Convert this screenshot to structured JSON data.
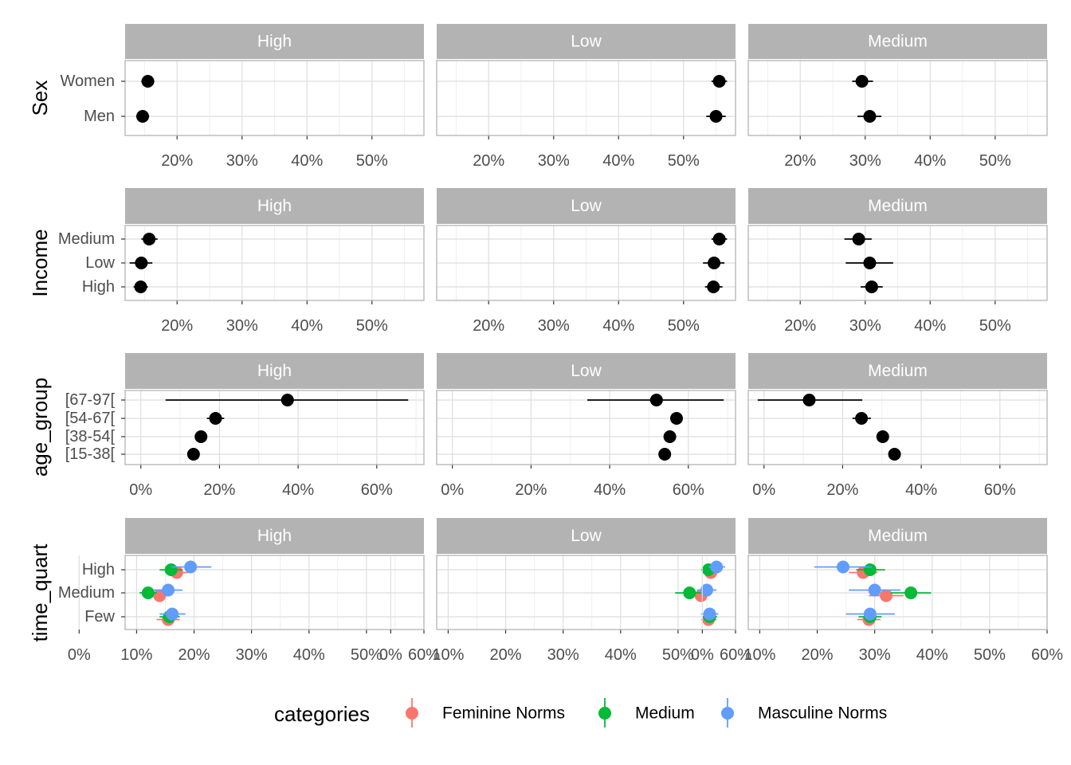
{
  "chart_data": [
    {
      "type": "scatter",
      "variable": "Sex",
      "panels": [
        "High",
        "Low",
        "Medium"
      ],
      "categories": [
        "Men",
        "Women"
      ],
      "xticks": [
        0.2,
        0.3,
        0.4,
        0.5
      ],
      "xtick_labels": [
        "20%",
        "30%",
        "40%",
        "50%"
      ],
      "series": [
        {
          "name": "",
          "color": "#000000",
          "points": [
            {
              "panel": "High",
              "category": "Women",
              "x": 0.155,
              "low": 0.145,
              "high": 0.165
            },
            {
              "panel": "High",
              "category": "Men",
              "x": 0.147,
              "low": 0.137,
              "high": 0.157
            },
            {
              "panel": "Low",
              "category": "Women",
              "x": 0.555,
              "low": 0.543,
              "high": 0.567
            },
            {
              "panel": "Low",
              "category": "Men",
              "x": 0.55,
              "low": 0.535,
              "high": 0.565
            },
            {
              "panel": "Medium",
              "category": "Women",
              "x": 0.295,
              "low": 0.28,
              "high": 0.312
            },
            {
              "panel": "Medium",
              "category": "Men",
              "x": 0.307,
              "low": 0.288,
              "high": 0.325
            }
          ]
        }
      ]
    },
    {
      "type": "scatter",
      "variable": "Income",
      "panels": [
        "High",
        "Low",
        "Medium"
      ],
      "categories": [
        "High",
        "Low",
        "Medium"
      ],
      "xticks": [
        0.2,
        0.3,
        0.4,
        0.5
      ],
      "xtick_labels": [
        "20%",
        "30%",
        "40%",
        "50%"
      ],
      "series": [
        {
          "name": "",
          "color": "#000000",
          "points": [
            {
              "panel": "High",
              "category": "Medium",
              "x": 0.157,
              "low": 0.145,
              "high": 0.17
            },
            {
              "panel": "High",
              "category": "Low",
              "x": 0.145,
              "low": 0.127,
              "high": 0.162
            },
            {
              "panel": "High",
              "category": "High",
              "x": 0.144,
              "low": 0.133,
              "high": 0.155
            },
            {
              "panel": "Low",
              "category": "Medium",
              "x": 0.555,
              "low": 0.543,
              "high": 0.567
            },
            {
              "panel": "Low",
              "category": "Low",
              "x": 0.547,
              "low": 0.53,
              "high": 0.563
            },
            {
              "panel": "Low",
              "category": "High",
              "x": 0.546,
              "low": 0.533,
              "high": 0.56
            },
            {
              "panel": "Medium",
              "category": "Medium",
              "x": 0.29,
              "low": 0.268,
              "high": 0.31
            },
            {
              "panel": "Medium",
              "category": "Low",
              "x": 0.307,
              "low": 0.27,
              "high": 0.343
            },
            {
              "panel": "Medium",
              "category": "High",
              "x": 0.31,
              "low": 0.293,
              "high": 0.327
            }
          ]
        }
      ]
    },
    {
      "type": "scatter",
      "variable": "age_group",
      "panels": [
        "High",
        "Low",
        "Medium"
      ],
      "categories": [
        "[15-38[",
        "[38-54[",
        "[54-67[",
        "[67-97["
      ],
      "xticks": [
        0.0,
        0.2,
        0.4,
        0.6
      ],
      "xtick_labels": [
        "0%",
        "20%",
        "40%",
        "60%"
      ],
      "series": [
        {
          "name": "",
          "color": "#000000",
          "points": [
            {
              "panel": "High",
              "category": "[67-97[",
              "x": 0.373,
              "low": 0.063,
              "high": 0.68
            },
            {
              "panel": "High",
              "category": "[54-67[",
              "x": 0.19,
              "low": 0.168,
              "high": 0.212
            },
            {
              "panel": "High",
              "category": "[38-54[",
              "x": 0.153,
              "low": 0.14,
              "high": 0.167
            },
            {
              "panel": "High",
              "category": "[15-38[",
              "x": 0.134,
              "low": 0.124,
              "high": 0.144
            },
            {
              "panel": "Low",
              "category": "[67-97[",
              "x": 0.519,
              "low": 0.343,
              "high": 0.69
            },
            {
              "panel": "Low",
              "category": "[54-67[",
              "x": 0.57,
              "low": 0.557,
              "high": 0.583
            },
            {
              "panel": "Low",
              "category": "[38-54[",
              "x": 0.553,
              "low": 0.542,
              "high": 0.565
            },
            {
              "panel": "Low",
              "category": "[15-38[",
              "x": 0.54,
              "low": 0.53,
              "high": 0.55
            },
            {
              "panel": "Medium",
              "category": "[67-97[",
              "x": 0.115,
              "low": -0.016,
              "high": 0.25
            },
            {
              "panel": "Medium",
              "category": "[54-67[",
              "x": 0.248,
              "low": 0.225,
              "high": 0.272
            },
            {
              "panel": "Medium",
              "category": "[38-54[",
              "x": 0.302,
              "low": 0.29,
              "high": 0.315
            },
            {
              "panel": "Medium",
              "category": "[15-38[",
              "x": 0.332,
              "low": 0.318,
              "high": 0.348
            }
          ]
        }
      ]
    },
    {
      "type": "scatter",
      "variable": "time_quart",
      "panels": [
        "High",
        "Low",
        "Medium"
      ],
      "categories": [
        "Few",
        "Medium",
        "High"
      ],
      "xticks": [
        0.0,
        0.1,
        0.2,
        0.3,
        0.4,
        0.5,
        0.6
      ],
      "xtick_labels": [
        "0%",
        "10%",
        "20%",
        "30%",
        "40%",
        "50%",
        "60%"
      ],
      "series": [
        {
          "name": "Feminine Norms",
          "color": "#F8766D",
          "points": [
            {
              "panel": "High",
              "category": "High",
              "x": 0.17,
              "low": 0.15,
              "high": 0.19
            },
            {
              "panel": "High",
              "category": "Medium",
              "x": 0.14,
              "low": 0.125,
              "high": 0.155
            },
            {
              "panel": "High",
              "category": "Few",
              "x": 0.155,
              "low": 0.135,
              "high": 0.175
            },
            {
              "panel": "Low",
              "category": "High",
              "x": 0.557,
              "low": 0.543,
              "high": 0.57
            },
            {
              "panel": "Low",
              "category": "Medium",
              "x": 0.54,
              "low": 0.525,
              "high": 0.555
            },
            {
              "panel": "Low",
              "category": "Few",
              "x": 0.553,
              "low": 0.54,
              "high": 0.567
            },
            {
              "panel": "Medium",
              "category": "High",
              "x": 0.28,
              "low": 0.255,
              "high": 0.305
            },
            {
              "panel": "Medium",
              "category": "Medium",
              "x": 0.32,
              "low": 0.29,
              "high": 0.35
            },
            {
              "panel": "Medium",
              "category": "Few",
              "x": 0.29,
              "low": 0.27,
              "high": 0.31
            }
          ]
        },
        {
          "name": "Medium",
          "color": "#00BA38",
          "points": [
            {
              "panel": "High",
              "category": "High",
              "x": 0.16,
              "low": 0.14,
              "high": 0.18
            },
            {
              "panel": "High",
              "category": "Medium",
              "x": 0.12,
              "low": 0.105,
              "high": 0.135
            },
            {
              "panel": "High",
              "category": "Few",
              "x": 0.157,
              "low": 0.14,
              "high": 0.175
            },
            {
              "panel": "Low",
              "category": "High",
              "x": 0.553,
              "low": 0.54,
              "high": 0.567
            },
            {
              "panel": "Low",
              "category": "Medium",
              "x": 0.52,
              "low": 0.495,
              "high": 0.545
            },
            {
              "panel": "Low",
              "category": "Few",
              "x": 0.555,
              "low": 0.543,
              "high": 0.568
            },
            {
              "panel": "Medium",
              "category": "High",
              "x": 0.292,
              "low": 0.268,
              "high": 0.318
            },
            {
              "panel": "Medium",
              "category": "Medium",
              "x": 0.363,
              "low": 0.328,
              "high": 0.398
            },
            {
              "panel": "Medium",
              "category": "Few",
              "x": 0.292,
              "low": 0.272,
              "high": 0.312
            }
          ]
        },
        {
          "name": "Masculine Norms",
          "color": "#619CFF",
          "points": [
            {
              "panel": "High",
              "category": "High",
              "x": 0.194,
              "low": 0.16,
              "high": 0.23
            },
            {
              "panel": "High",
              "category": "Medium",
              "x": 0.155,
              "low": 0.13,
              "high": 0.18
            },
            {
              "panel": "High",
              "category": "Few",
              "x": 0.162,
              "low": 0.14,
              "high": 0.185
            },
            {
              "panel": "Low",
              "category": "High",
              "x": 0.567,
              "low": 0.553,
              "high": 0.582
            },
            {
              "panel": "Low",
              "category": "Medium",
              "x": 0.55,
              "low": 0.533,
              "high": 0.567
            },
            {
              "panel": "Low",
              "category": "Few",
              "x": 0.555,
              "low": 0.54,
              "high": 0.57
            },
            {
              "panel": "Medium",
              "category": "High",
              "x": 0.245,
              "low": 0.195,
              "high": 0.295
            },
            {
              "panel": "Medium",
              "category": "Medium",
              "x": 0.3,
              "low": 0.255,
              "high": 0.345
            },
            {
              "panel": "Medium",
              "category": "Few",
              "x": 0.292,
              "low": 0.25,
              "high": 0.335
            }
          ]
        }
      ]
    }
  ],
  "legend": {
    "title": "categories",
    "placement": "bottom",
    "entries": [
      {
        "label": "Feminine Norms",
        "color": "#F8766D"
      },
      {
        "label": "Medium",
        "color": "#00BA38"
      },
      {
        "label": "Masculine Norms",
        "color": "#619CFF"
      }
    ]
  },
  "style": {
    "strip_fill": "#B3B3B3",
    "grid_color": "#DEDEDE",
    "border_color": "#B3B3B3"
  }
}
